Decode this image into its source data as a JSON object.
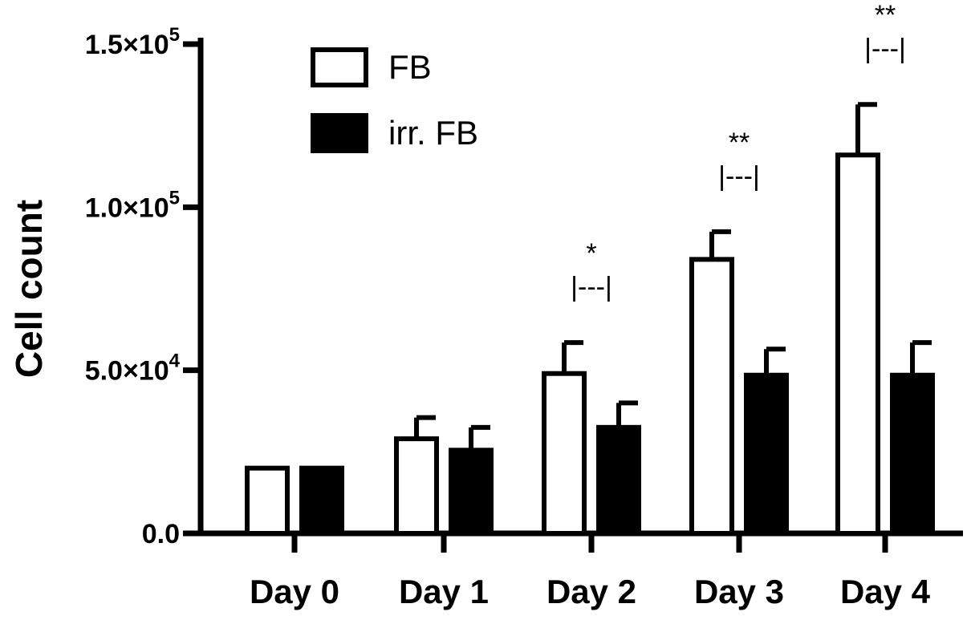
{
  "chart_data": {
    "type": "bar",
    "title": "",
    "xlabel": "",
    "ylabel": "Cell count",
    "ylim": [
      0,
      150000
    ],
    "yticks": [
      {
        "value": 0,
        "label": "0.0"
      },
      {
        "value": 50000,
        "label": "5.0×10",
        "exp": "4"
      },
      {
        "value": 100000,
        "label": "1.0×10",
        "exp": "5"
      },
      {
        "value": 150000,
        "label": "1.5×10",
        "exp": "5"
      }
    ],
    "categories": [
      "Day 0",
      "Day 1",
      "Day 2",
      "Day 3",
      "Day 4"
    ],
    "series": [
      {
        "name": "FB",
        "fill": "#ffffff",
        "values": [
          20000,
          29000,
          49000,
          84000,
          116000
        ],
        "errors": [
          0,
          6500,
          9500,
          8500,
          15500
        ]
      },
      {
        "name": "irr. FB",
        "fill": "#000000",
        "values": [
          20000,
          25500,
          32500,
          48500,
          48500
        ],
        "errors": [
          0,
          7000,
          7500,
          8000,
          10000
        ]
      }
    ],
    "significance": [
      {
        "category": "Day 2",
        "stars": "*",
        "bracket": "|---|"
      },
      {
        "category": "Day 3",
        "stars": "**",
        "bracket": "|---|"
      },
      {
        "category": "Day 4",
        "stars": "**",
        "bracket": "|---|"
      }
    ],
    "legend_position": "top-left",
    "grid": false
  }
}
